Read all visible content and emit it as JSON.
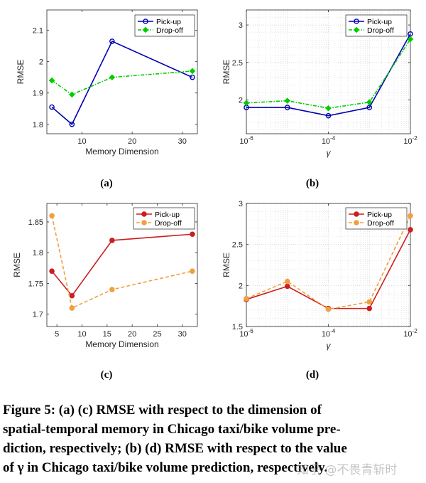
{
  "chart_data": [
    {
      "id": "a",
      "type": "line",
      "panel_label": "(a)",
      "xlabel": "Memory Dimension",
      "ylabel": "RMSE",
      "xscale": "linear",
      "xlim": [
        3,
        33
      ],
      "ylim": [
        1.77,
        2.165
      ],
      "x_ticks": [
        10,
        20,
        30
      ],
      "x_tick_labels": [
        "10",
        "20",
        "30"
      ],
      "y_ticks": [
        1.8,
        1.9,
        2.0,
        2.1
      ],
      "y_tick_labels": [
        "1.8",
        "1.9",
        "2",
        "2.1"
      ],
      "grid": "none",
      "legend_position": "top-right",
      "x": [
        4,
        8,
        16,
        32
      ],
      "series": [
        {
          "name": "Pick-up",
          "values": [
            1.855,
            1.8,
            2.065,
            1.95
          ],
          "color": "#0000b3",
          "dash": "solid",
          "marker": "circle"
        },
        {
          "name": "Drop-off",
          "values": [
            1.94,
            1.895,
            1.95,
            1.97
          ],
          "color": "#00cc00",
          "dash": "dashdot",
          "marker": "diamond"
        }
      ]
    },
    {
      "id": "b",
      "type": "line",
      "panel_label": "(b)",
      "xlabel": "γ",
      "ylabel": "RMSE",
      "xscale": "log",
      "xlim": [
        1e-06,
        0.01
      ],
      "ylim": [
        1.55,
        3.2
      ],
      "x_ticks": [
        1e-06,
        0.0001,
        0.01
      ],
      "x_tick_labels": [
        "10",
        "10",
        "10"
      ],
      "x_tick_exponents": [
        "-6",
        "-4",
        "-2"
      ],
      "y_ticks": [
        2,
        2.5,
        3
      ],
      "y_tick_labels": [
        "2",
        "2.5",
        "3"
      ],
      "grid": "log-dotted",
      "legend_position": "top-right",
      "x": [
        1e-06,
        1e-05,
        0.0001,
        0.001,
        0.01
      ],
      "series": [
        {
          "name": "Pick-up",
          "values": [
            1.9,
            1.9,
            1.79,
            1.9,
            2.88
          ],
          "color": "#0000b3",
          "dash": "solid",
          "marker": "circle"
        },
        {
          "name": "Drop-off",
          "values": [
            1.96,
            1.99,
            1.89,
            1.97,
            2.81
          ],
          "color": "#00cc00",
          "dash": "dashdot",
          "marker": "diamond"
        }
      ]
    },
    {
      "id": "c",
      "type": "line",
      "panel_label": "(c)",
      "xlabel": "Memory Dimension",
      "ylabel": "RMSE",
      "xscale": "linear",
      "xlim": [
        3,
        33
      ],
      "ylim": [
        1.68,
        1.88
      ],
      "x_ticks": [
        5,
        10,
        15,
        20,
        25,
        30
      ],
      "x_tick_labels": [
        "5",
        "10",
        "15",
        "20",
        "25",
        "30"
      ],
      "y_ticks": [
        1.7,
        1.75,
        1.8,
        1.85
      ],
      "y_tick_labels": [
        "1.7",
        "1.75",
        "1.8",
        "1.85"
      ],
      "grid": "none",
      "legend_position": "top-right",
      "x": [
        4,
        8,
        16,
        32
      ],
      "series": [
        {
          "name": "Pick-up",
          "values": [
            1.77,
            1.73,
            1.82,
            1.83
          ],
          "color": "#cc1f1f",
          "dash": "solid",
          "marker": "circle"
        },
        {
          "name": "Drop-off",
          "values": [
            1.86,
            1.71,
            1.74,
            1.77
          ],
          "color": "#f0a040",
          "dash": "dashed",
          "marker": "circle"
        }
      ]
    },
    {
      "id": "d",
      "type": "line",
      "panel_label": "(d)",
      "xlabel": "γ",
      "ylabel": "RMSE",
      "xscale": "log",
      "xlim": [
        1e-06,
        0.01
      ],
      "ylim": [
        1.5,
        3
      ],
      "x_ticks": [
        1e-06,
        0.0001,
        0.01
      ],
      "x_tick_labels": [
        "10",
        "10",
        "10"
      ],
      "x_tick_exponents": [
        "-6",
        "-4",
        "-2"
      ],
      "y_ticks": [
        1.5,
        2,
        2.5,
        3
      ],
      "y_tick_labels": [
        "1.5",
        "2",
        "2.5",
        "3"
      ],
      "grid": "log-dotted",
      "legend_position": "top-right",
      "x": [
        1e-06,
        1e-05,
        0.0001,
        0.001,
        0.01
      ],
      "series": [
        {
          "name": "Pick-up",
          "values": [
            1.83,
            1.99,
            1.72,
            1.72,
            2.68
          ],
          "color": "#cc1f1f",
          "dash": "solid",
          "marker": "circle"
        },
        {
          "name": "Drop-off",
          "values": [
            1.84,
            2.05,
            1.71,
            1.8,
            2.85
          ],
          "color": "#f0a040",
          "dash": "dashed",
          "marker": "circle"
        }
      ]
    }
  ],
  "caption": {
    "lines": [
      "Figure 5: (a) (c) RMSE with respect to the dimension of",
      "spatial-temporal memory in Chicago taxi/bike volume pre-",
      "diction, respectively; (b) (d) RMSE with respect to the value",
      "of γ in Chicago taxi/bike volume prediction, respectively."
    ]
  },
  "watermark": "知乎 @不畏青斩时"
}
